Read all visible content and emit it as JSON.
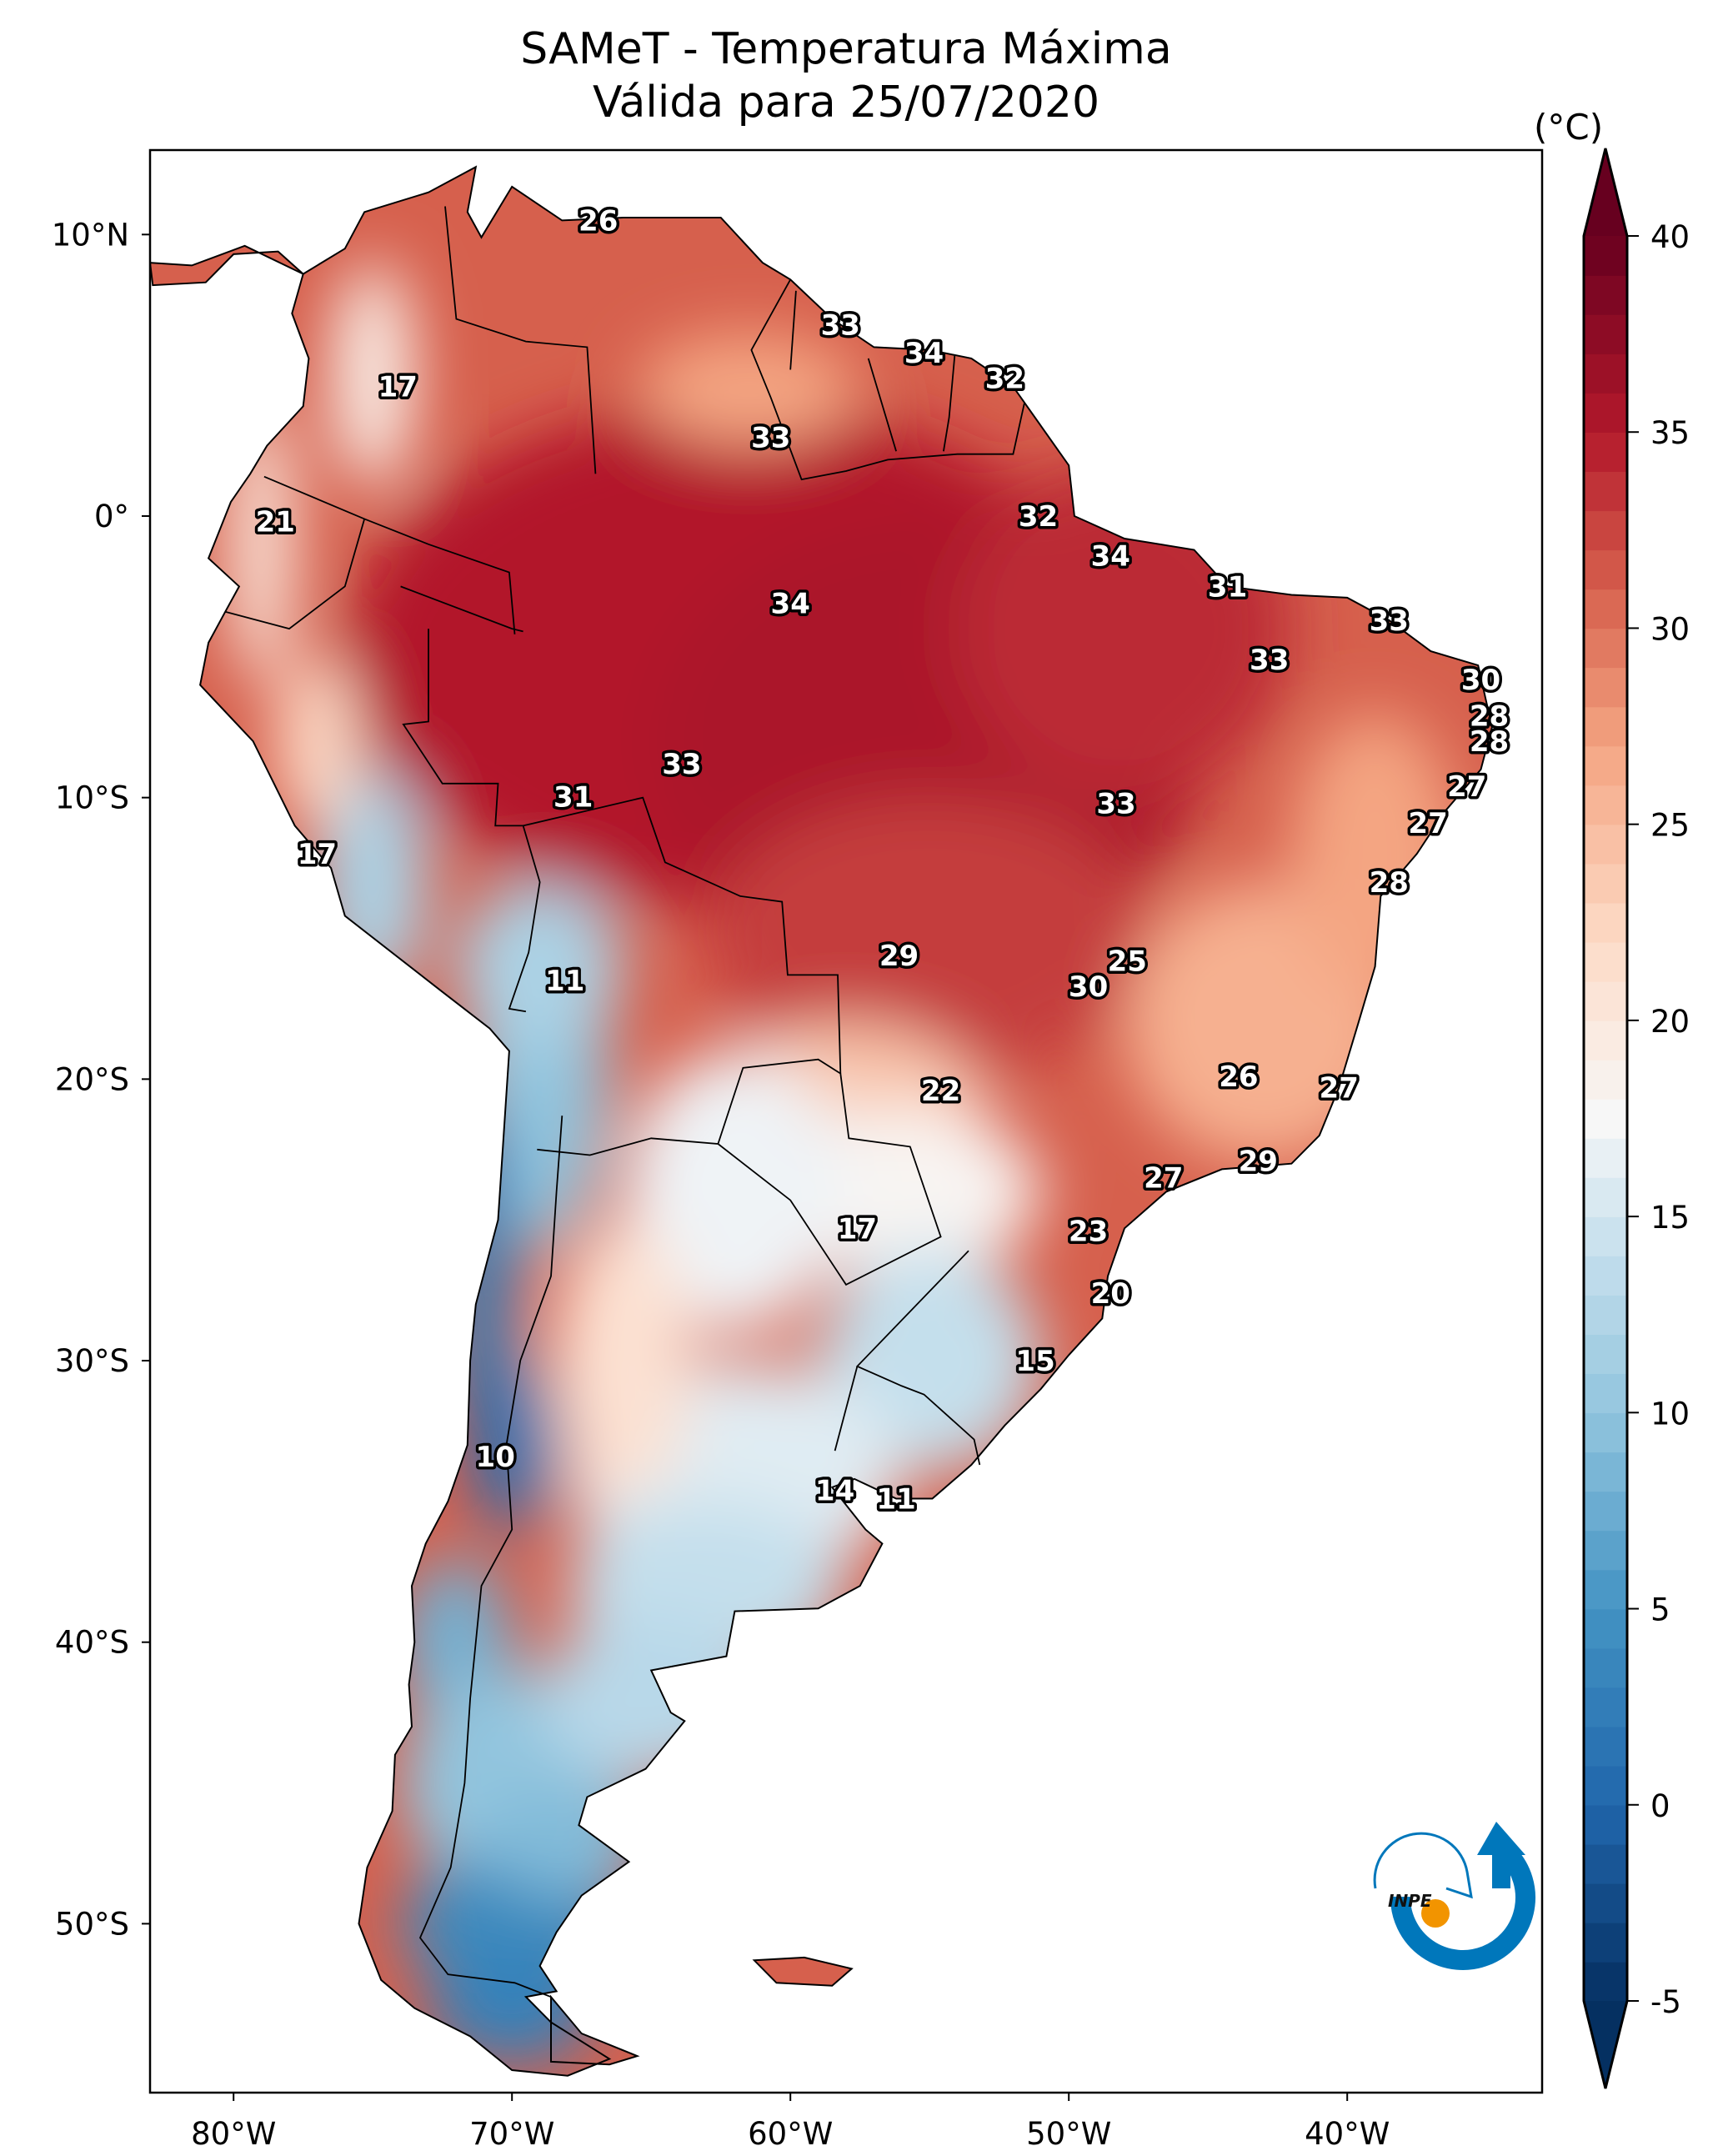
{
  "title": {
    "line1": "SAMeT - Temperatura Máxima",
    "line2": "Válida para 25/07/2020"
  },
  "colorbar": {
    "unit": "(°C)",
    "ticks": [
      "40",
      "35",
      "30",
      "25",
      "20",
      "15",
      "10",
      "5",
      "0",
      "-5"
    ],
    "min": -5,
    "max": 40,
    "extend": "both",
    "colormap": "RdBu_r",
    "stops": [
      {
        "v": -5,
        "c": "#053061"
      },
      {
        "v": 0,
        "c": "#2166ac"
      },
      {
        "v": 5,
        "c": "#4393c3"
      },
      {
        "v": 10,
        "c": "#92c5de"
      },
      {
        "v": 15,
        "c": "#d1e5f0"
      },
      {
        "v": 17.5,
        "c": "#f7f7f7"
      },
      {
        "v": 22,
        "c": "#fddbc7"
      },
      {
        "v": 27,
        "c": "#f4a582"
      },
      {
        "v": 31,
        "c": "#d6604d"
      },
      {
        "v": 35,
        "c": "#b2182b"
      },
      {
        "v": 40,
        "c": "#67001f"
      }
    ]
  },
  "logo": {
    "text": "INPE",
    "name": "inpe-logo"
  },
  "chart_data": {
    "type": "heatmap",
    "title": "SAMeT - Temperatura Máxima — Válida para 25/07/2020",
    "variable": "Maximum temperature",
    "unit": "°C",
    "xlabel": "",
    "ylabel": "",
    "xlim": [
      -83,
      -33
    ],
    "ylim": [
      -56,
      13
    ],
    "xticks": [
      "80°W",
      "70°W",
      "60°W",
      "50°W",
      "40°W"
    ],
    "xtick_values": [
      -80,
      -70,
      -60,
      -50,
      -40
    ],
    "yticks": [
      "10°N",
      "0°",
      "10°S",
      "20°S",
      "30°S",
      "40°S",
      "50°S"
    ],
    "ytick_values": [
      10,
      0,
      -10,
      -20,
      -30,
      -40,
      -50
    ],
    "colorbar_range": [
      -5,
      40
    ],
    "grid": false,
    "city_labels": [
      {
        "lon": -66.9,
        "lat": 10.5,
        "value": 26
      },
      {
        "lon": -58.2,
        "lat": 6.8,
        "value": 33
      },
      {
        "lon": -55.2,
        "lat": 5.8,
        "value": 34
      },
      {
        "lon": -52.3,
        "lat": 4.9,
        "value": 32
      },
      {
        "lon": -74.1,
        "lat": 4.6,
        "value": 17
      },
      {
        "lon": -60.7,
        "lat": 2.8,
        "value": 33
      },
      {
        "lon": -78.5,
        "lat": -0.2,
        "value": 21
      },
      {
        "lon": -51.1,
        "lat": 0.0,
        "value": 32
      },
      {
        "lon": -48.5,
        "lat": -1.4,
        "value": 34
      },
      {
        "lon": -60.0,
        "lat": -3.1,
        "value": 34
      },
      {
        "lon": -44.3,
        "lat": -2.5,
        "value": 31
      },
      {
        "lon": -38.5,
        "lat": -3.7,
        "value": 33
      },
      {
        "lon": -42.8,
        "lat": -5.1,
        "value": 33
      },
      {
        "lon": -35.2,
        "lat": -5.8,
        "value": 30
      },
      {
        "lon": -34.9,
        "lat": -7.1,
        "value": 28
      },
      {
        "lon": -34.9,
        "lat": -8.0,
        "value": 28
      },
      {
        "lon": -35.7,
        "lat": -9.6,
        "value": 27
      },
      {
        "lon": -37.1,
        "lat": -10.9,
        "value": 27
      },
      {
        "lon": -63.9,
        "lat": -8.8,
        "value": 33
      },
      {
        "lon": -67.8,
        "lat": -9.97,
        "value": 31
      },
      {
        "lon": -48.3,
        "lat": -10.2,
        "value": 33
      },
      {
        "lon": -77.0,
        "lat": -12.0,
        "value": 17
      },
      {
        "lon": -38.5,
        "lat": -13.0,
        "value": 28
      },
      {
        "lon": -56.1,
        "lat": -15.6,
        "value": 29
      },
      {
        "lon": -47.9,
        "lat": -15.8,
        "value": 25
      },
      {
        "lon": -49.3,
        "lat": -16.7,
        "value": 30
      },
      {
        "lon": -68.1,
        "lat": -16.5,
        "value": 11
      },
      {
        "lon": -54.6,
        "lat": -20.4,
        "value": 22
      },
      {
        "lon": -43.9,
        "lat": -19.9,
        "value": 26
      },
      {
        "lon": -40.3,
        "lat": -20.3,
        "value": 27
      },
      {
        "lon": -43.2,
        "lat": -22.9,
        "value": 29
      },
      {
        "lon": -46.6,
        "lat": -23.5,
        "value": 27
      },
      {
        "lon": -57.6,
        "lat": -25.3,
        "value": 17
      },
      {
        "lon": -49.3,
        "lat": -25.4,
        "value": 23
      },
      {
        "lon": -48.5,
        "lat": -27.6,
        "value": 20
      },
      {
        "lon": -51.2,
        "lat": -30.0,
        "value": 15
      },
      {
        "lon": -70.6,
        "lat": -33.4,
        "value": 10
      },
      {
        "lon": -58.4,
        "lat": -34.6,
        "value": 14
      },
      {
        "lon": -56.2,
        "lat": -34.9,
        "value": 11
      }
    ]
  }
}
